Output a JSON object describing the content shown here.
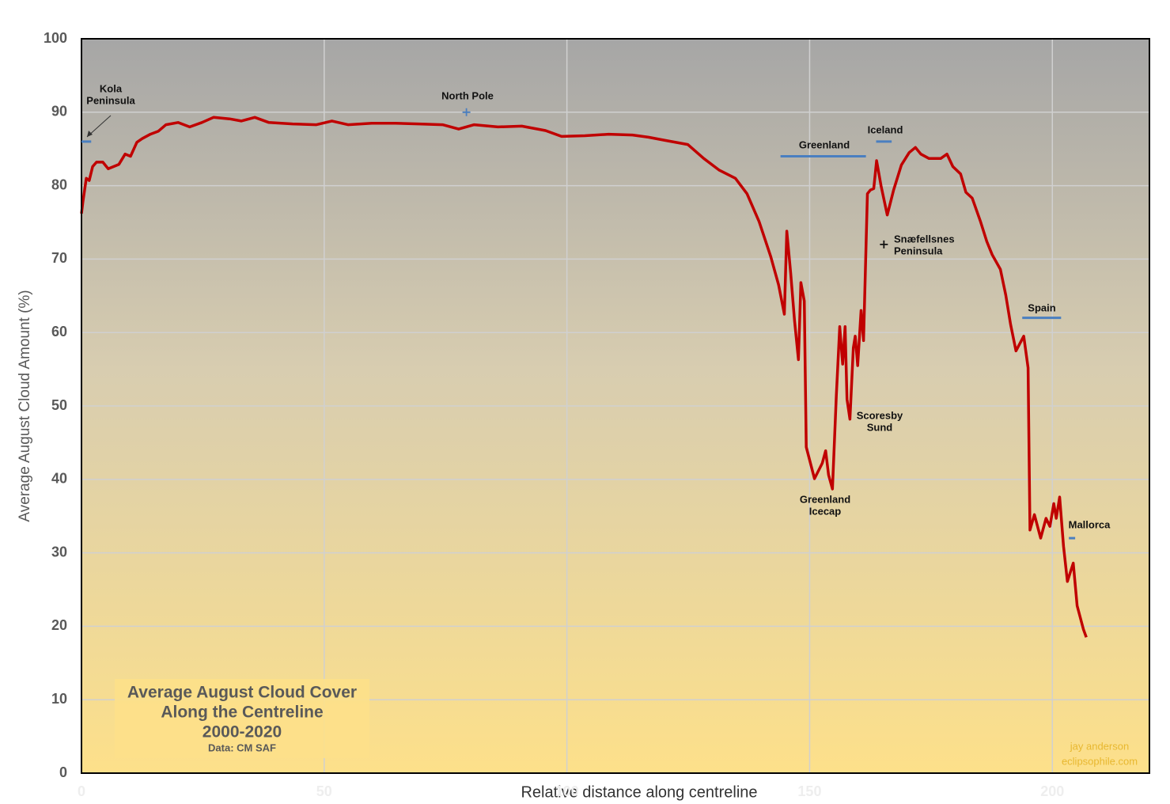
{
  "chart_data": {
    "type": "line",
    "title": [
      "Average August Cloud Cover",
      "Along the Centreline",
      "2000-2020"
    ],
    "source": "Data: CM SAF",
    "credit": [
      "jay anderson",
      "eclipsophile.com"
    ],
    "x_label": "Relative distance along centreline",
    "y_label": "Average August Cloud Amount (%)",
    "xlim": [
      0,
      220
    ],
    "xticks": [
      0,
      50,
      100,
      150,
      200
    ],
    "ylim": [
      0,
      100
    ],
    "yticks": [
      0,
      10,
      20,
      30,
      40,
      50,
      60,
      70,
      80,
      90,
      100
    ],
    "grid": true,
    "color": "#c00000",
    "x": [
      0,
      0.3,
      1.0,
      1.6,
      2.3,
      3.1,
      4.4,
      5.5,
      7.7,
      9.0,
      10.1,
      11.4,
      12.5,
      14.2,
      15.8,
      17.4,
      19.9,
      22.3,
      24.8,
      27.2,
      30.5,
      32.9,
      35.7,
      38.6,
      43.5,
      48.4,
      51.6,
      54.9,
      59.8,
      64.7,
      69.5,
      74.4,
      77.7,
      80.9,
      85.8,
      90.7,
      95.6,
      98.9,
      103.7,
      108.6,
      113.5,
      116.8,
      120.0,
      124.9,
      128.2,
      131.4,
      134.7,
      137.1,
      139.6,
      142.0,
      143.6,
      144.8,
      145.3,
      146.1,
      146.9,
      147.7,
      148.2,
      148.9,
      149.3,
      151.0,
      152.6,
      153.3,
      153.9,
      154.7,
      155.5,
      156.2,
      156.8,
      157.3,
      157.7,
      158.3,
      159.0,
      159.4,
      159.9,
      160.6,
      161.1,
      161.9,
      162.5,
      163.2,
      163.8,
      164.7,
      166.0,
      167.3,
      168.9,
      170.5,
      171.8,
      172.9,
      174.6,
      177.0,
      178.3,
      179.5,
      181.1,
      182.2,
      183.5,
      185.2,
      186.5,
      187.6,
      189.3,
      190.4,
      191.4,
      192.5,
      194.1,
      195.0,
      195.4,
      196.3,
      197.6,
      198.7,
      199.5,
      200.3,
      200.8,
      201.5,
      202.3,
      203.1,
      204.3,
      205.1,
      206.4,
      207.0
    ],
    "values": [
      76.2,
      77.8,
      81,
      80.7,
      82.6,
      83.2,
      83.2,
      82.3,
      82.9,
      84.3,
      84,
      85.9,
      86.4,
      87,
      87.4,
      88.3,
      88.6,
      88,
      88.6,
      89.3,
      89.1,
      88.8,
      89.3,
      88.6,
      88.4,
      88.3,
      88.8,
      88.3,
      88.5,
      88.5,
      88.4,
      88.3,
      87.7,
      88.3,
      88,
      88.1,
      87.5,
      86.7,
      86.8,
      87,
      86.9,
      86.6,
      86.2,
      85.6,
      83.7,
      82.1,
      81,
      78.9,
      75.1,
      70.3,
      66.5,
      62.5,
      73.8,
      68.1,
      61.6,
      56.3,
      66.8,
      64.3,
      44.4,
      40.1,
      42.2,
      43.9,
      40.6,
      38.7,
      51.4,
      60.8,
      55.7,
      60.8,
      50.9,
      48.2,
      57.9,
      59.5,
      55.5,
      63,
      58.9,
      78.9,
      79.4,
      79.6,
      83.4,
      80,
      76,
      79.4,
      82.8,
      84.5,
      85.2,
      84.3,
      83.7,
      83.7,
      84.3,
      82.6,
      81.6,
      79.1,
      78.3,
      75.1,
      72.4,
      70.6,
      68.6,
      65.1,
      61.1,
      57.5,
      59.5,
      55.2,
      33.1,
      35.2,
      32,
      34.7,
      33.6,
      36.7,
      34.7,
      37.6,
      30.9,
      26.1,
      28.6,
      22.8,
      19.6,
      18.5
    ],
    "annotations": [
      {
        "text": [
          "Kola",
          "Peninsula"
        ],
        "marker": "line",
        "x": [
          0,
          2
        ],
        "y": 86,
        "color": "#4a7fc0"
      },
      {
        "text": [
          "North Pole"
        ],
        "marker": "plus",
        "x": [
          79.3
        ],
        "y": 90,
        "color": "#4a7fc0"
      },
      {
        "text": [
          "Greenland"
        ],
        "marker": "line",
        "x": [
          144,
          161.6
        ],
        "y": 84,
        "color": "#4a7fc0"
      },
      {
        "text": [
          "Iceland"
        ],
        "marker": "line",
        "x": [
          163.7,
          166.9
        ],
        "y": 86,
        "color": "#4a7fc0"
      },
      {
        "text": [
          "Snæfellsnes",
          "Peninsula"
        ],
        "marker": "plus",
        "x": [
          165.3
        ],
        "y": 72,
        "color": "#111111"
      },
      {
        "text": [
          "Spain"
        ],
        "marker": "line",
        "x": [
          193.8,
          201.8
        ],
        "y": 62,
        "color": "#4a7fc0"
      },
      {
        "text": [
          "Mallorca"
        ],
        "marker": "line",
        "x": [
          203.4,
          204.7
        ],
        "y": 32,
        "color": "#4a7fc0"
      },
      {
        "text": [
          "Scoresby",
          "Sund"
        ]
      },
      {
        "text": [
          "Greenland",
          "Icecap"
        ]
      }
    ]
  }
}
